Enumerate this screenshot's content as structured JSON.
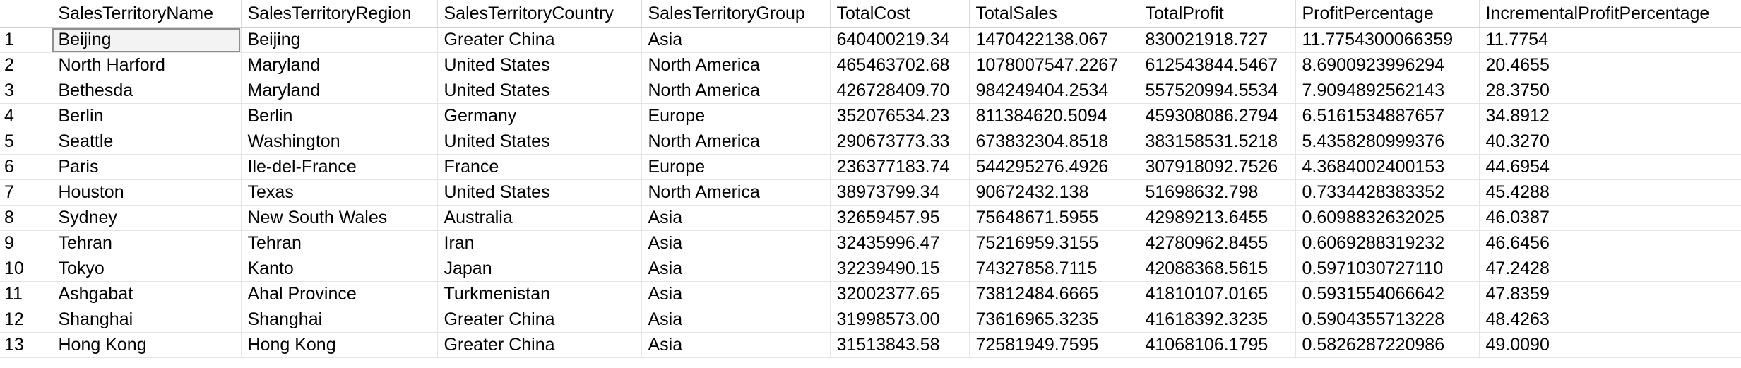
{
  "grid": {
    "columns": [
      "",
      "SalesTerritoryName",
      "SalesTerritoryRegion",
      "SalesTerritoryCountry",
      "SalesTerritoryGroup",
      "TotalCost",
      "TotalSales",
      "TotalProfit",
      "ProfitPercentage",
      "IncrementalProfitPercentage"
    ],
    "rows": [
      [
        "1",
        "Beijing",
        "Beijing",
        "Greater China",
        "Asia",
        "640400219.34",
        "1470422138.067",
        "830021918.727",
        "11.7754300066359",
        "11.7754"
      ],
      [
        "2",
        "North Harford",
        "Maryland",
        "United States",
        "North America",
        "465463702.68",
        "1078007547.2267",
        "612543844.5467",
        "8.6900923996294",
        "20.4655"
      ],
      [
        "3",
        "Bethesda",
        "Maryland",
        "United States",
        "North America",
        "426728409.70",
        "984249404.2534",
        "557520994.5534",
        "7.9094892562143",
        "28.3750"
      ],
      [
        "4",
        "Berlin",
        "Berlin",
        "Germany",
        "Europe",
        "352076534.23",
        "811384620.5094",
        "459308086.2794",
        "6.5161534887657",
        "34.8912"
      ],
      [
        "5",
        "Seattle",
        "Washington",
        "United States",
        "North America",
        "290673773.33",
        "673832304.8518",
        "383158531.5218",
        "5.4358280999376",
        "40.3270"
      ],
      [
        "6",
        "Paris",
        "Ile-del-France",
        "France",
        "Europe",
        "236377183.74",
        "544295276.4926",
        "307918092.7526",
        "4.3684002400153",
        "44.6954"
      ],
      [
        "7",
        "Houston",
        "Texas",
        "United States",
        "North America",
        "38973799.34",
        "90672432.138",
        "51698632.798",
        "0.7334428383352",
        "45.4288"
      ],
      [
        "8",
        "Sydney",
        "New South Wales",
        "Australia",
        "Asia",
        "32659457.95",
        "75648671.5955",
        "42989213.6455",
        "0.6098832632025",
        "46.0387"
      ],
      [
        "9",
        "Tehran",
        "Tehran",
        "Iran",
        "Asia",
        "32435996.47",
        "75216959.3155",
        "42780962.8455",
        "0.6069288319232",
        "46.6456"
      ],
      [
        "10",
        "Tokyo",
        "Kanto",
        "Japan",
        "Asia",
        "32239490.15",
        "74327858.7115",
        "42088368.5615",
        "0.5971030727110",
        "47.2428"
      ],
      [
        "11",
        "Ashgabat",
        "Ahal Province",
        "Turkmenistan",
        "Asia",
        "32002377.65",
        "73812484.6665",
        "41810107.0165",
        "0.5931554066642",
        "47.8359"
      ],
      [
        "12",
        "Shanghai",
        "Shanghai",
        "Greater China",
        "Asia",
        "31998573.00",
        "73616965.3235",
        "41618392.3235",
        "0.5904355713228",
        "48.4263"
      ],
      [
        "13",
        "Hong Kong",
        "Hong Kong",
        "Greater China",
        "Asia",
        "31513843.58",
        "72581949.7595",
        "41068106.1795",
        "0.5826287220986",
        "49.0090"
      ]
    ]
  }
}
